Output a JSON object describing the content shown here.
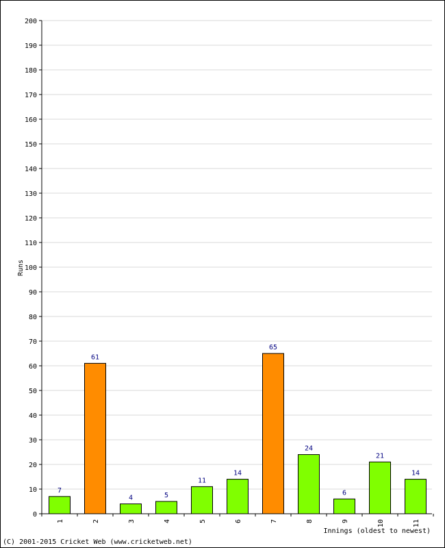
{
  "chart_data": {
    "type": "bar",
    "categories": [
      "1",
      "2",
      "3",
      "4",
      "5",
      "6",
      "7",
      "8",
      "9",
      "10",
      "11"
    ],
    "values": [
      7,
      61,
      4,
      5,
      11,
      14,
      65,
      24,
      6,
      21,
      14
    ],
    "highlight_fifties": [
      false,
      true,
      false,
      false,
      false,
      false,
      true,
      false,
      false,
      false,
      false
    ],
    "ylim": [
      0,
      200
    ],
    "ytick_step": 10,
    "xlabel": "Innings (oldest to newest)",
    "ylabel": "Runs",
    "grid": true,
    "colors": {
      "bar_normal": "#80ff00",
      "bar_highlight": "#ff8c00",
      "bar_stroke": "#000000",
      "grid": "#d8d8d8",
      "data_label": "#000080"
    }
  },
  "footer": {
    "copyright": "(C) 2001-2015 Cricket Web (www.cricketweb.net)"
  }
}
